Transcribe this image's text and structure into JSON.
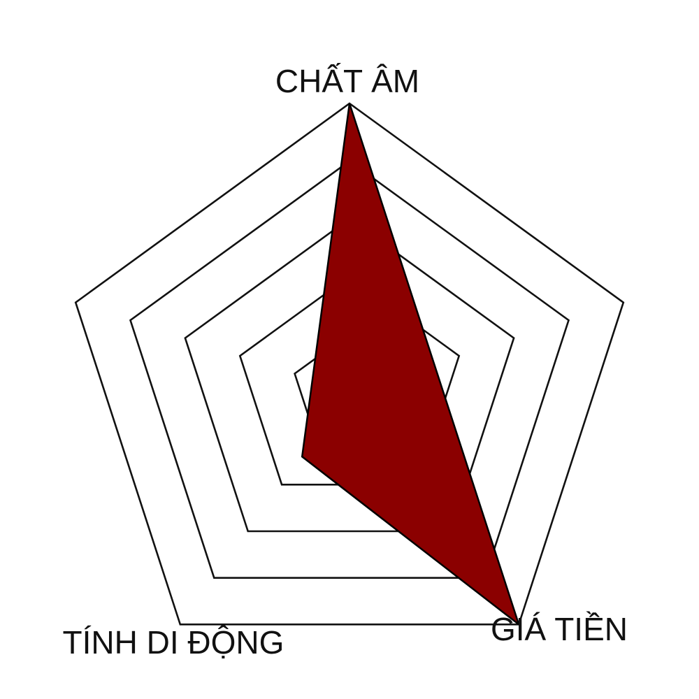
{
  "chart_data": {
    "type": "radar",
    "axes": [
      "CHẤT ÂM",
      "GIÁ TIỀN",
      "TÍNH DI ĐỘNG"
    ],
    "levels": 5,
    "max": 5,
    "grid": true,
    "series": [
      {
        "values": [
          5,
          5,
          1.4
        ]
      }
    ],
    "colors": {
      "fill": "#8b0000",
      "stroke": "#000000",
      "grid": "#111111",
      "background": "#ffffff"
    }
  }
}
